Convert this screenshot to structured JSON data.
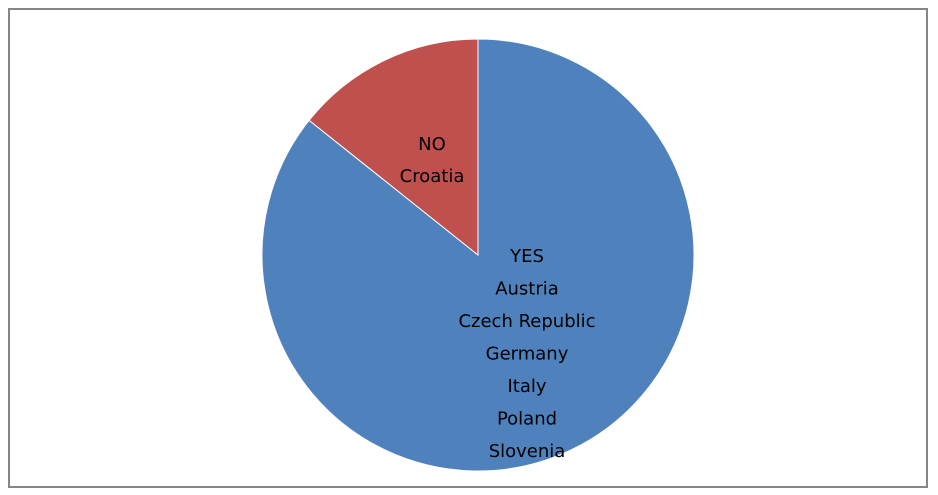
{
  "chart_data": {
    "type": "pie",
    "title": "",
    "slices": [
      {
        "key": "yes",
        "label_lines": [
          "YES",
          "Austria",
          "Czech Republic",
          "Germany",
          "Italy",
          "Poland",
          "Slovenia"
        ],
        "value": 6,
        "color": "#4F81BD"
      },
      {
        "key": "no",
        "label_lines": [
          "NO",
          "Croatia"
        ],
        "value": 1,
        "color": "#C0504D"
      }
    ],
    "start_angle_deg": 0,
    "direction": "clockwise",
    "legend": "none"
  },
  "colors": {
    "border": "#868686",
    "slice_edge": "#ffffff"
  }
}
